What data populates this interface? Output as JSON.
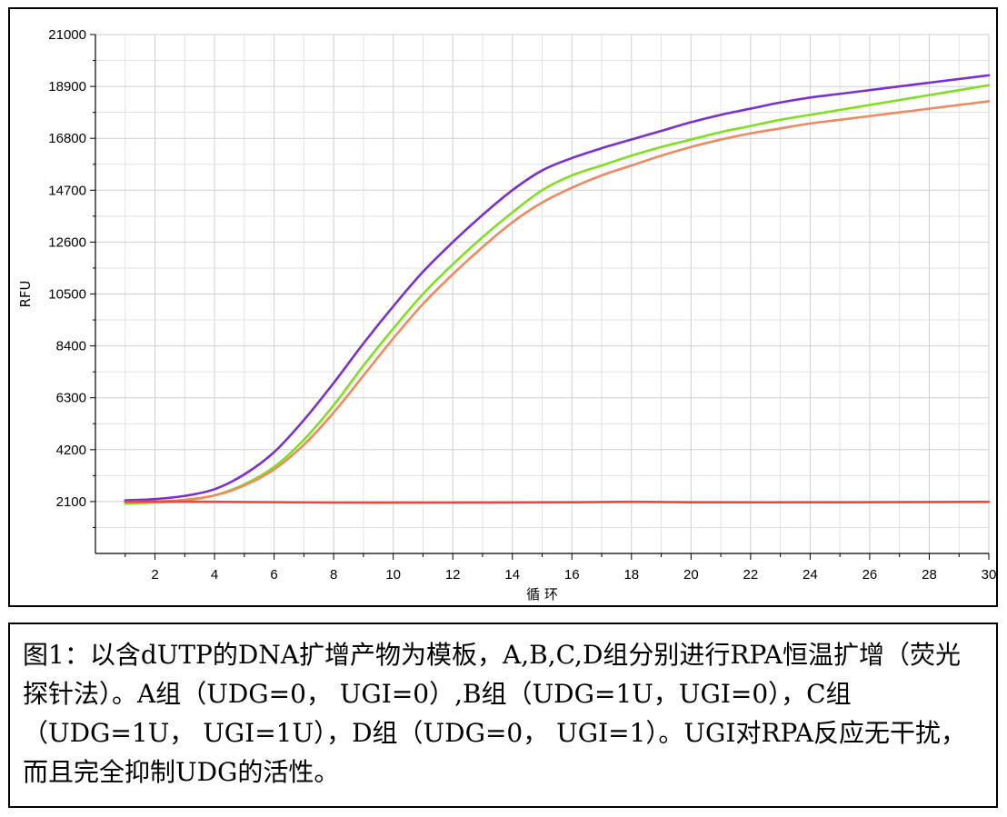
{
  "chart_data": {
    "type": "line",
    "xlabel": "循 环",
    "ylabel": "RFU",
    "xlim": [
      0,
      30
    ],
    "ylim": [
      0,
      21000
    ],
    "x_ticks": [
      2,
      4,
      6,
      8,
      10,
      12,
      14,
      16,
      18,
      20,
      22,
      24,
      26,
      28,
      30
    ],
    "y_ticks": [
      2100,
      4200,
      6300,
      8400,
      10500,
      12600,
      14700,
      16800,
      18900,
      21000
    ],
    "grid": true,
    "series": [
      {
        "color": "#7b2fd0",
        "x": [
          1,
          2,
          3,
          4,
          5,
          6,
          7,
          8,
          9,
          10,
          11,
          12,
          13,
          14,
          15,
          16,
          17,
          18,
          19,
          20,
          21,
          22,
          23,
          24,
          25,
          26,
          27,
          28,
          29,
          30
        ],
        "y": [
          2150,
          2200,
          2330,
          2600,
          3200,
          4100,
          5400,
          6900,
          8500,
          10000,
          11400,
          12600,
          13700,
          14700,
          15500,
          16000,
          16400,
          16750,
          17100,
          17450,
          17750,
          18000,
          18250,
          18450,
          18600,
          18750,
          18900,
          19050,
          19200,
          19350
        ]
      },
      {
        "color": "#80e020",
        "x": [
          1,
          2,
          3,
          4,
          5,
          6,
          7,
          8,
          9,
          10,
          11,
          12,
          13,
          14,
          15,
          16,
          17,
          18,
          19,
          20,
          21,
          22,
          23,
          24,
          25,
          26,
          27,
          28,
          29,
          30
        ],
        "y": [
          2020,
          2060,
          2150,
          2350,
          2800,
          3500,
          4600,
          6000,
          7600,
          9100,
          10500,
          11700,
          12800,
          13800,
          14700,
          15300,
          15700,
          16100,
          16450,
          16750,
          17050,
          17300,
          17550,
          17750,
          17950,
          18150,
          18350,
          18550,
          18750,
          18950
        ]
      },
      {
        "color": "#f08860",
        "x": [
          1,
          2,
          3,
          4,
          5,
          6,
          7,
          8,
          9,
          10,
          11,
          12,
          13,
          14,
          15,
          16,
          17,
          18,
          19,
          20,
          21,
          22,
          23,
          24,
          25,
          26,
          27,
          28,
          29,
          30
        ],
        "y": [
          2080,
          2100,
          2170,
          2350,
          2750,
          3400,
          4400,
          5700,
          7200,
          8700,
          10100,
          11300,
          12400,
          13400,
          14200,
          14800,
          15300,
          15700,
          16100,
          16450,
          16750,
          17000,
          17200,
          17400,
          17550,
          17700,
          17850,
          18000,
          18150,
          18300
        ]
      },
      {
        "color": "#e8483e",
        "x": [
          1,
          4,
          8,
          12,
          16,
          18,
          20,
          24,
          28,
          30
        ],
        "y": [
          2100,
          2090,
          2060,
          2060,
          2070,
          2090,
          2070,
          2070,
          2080,
          2090
        ]
      }
    ]
  },
  "caption": {
    "text": "图1：以含dUTP的DNA扩增产物为模板，A,B,C,D组分别进行RPA恒温扩增（荧光探针法）。A组（UDG=0， UGI=0）,B组（UDG=1U，UGI=0），C组（UDG=1U， UGI=1U），D组（UDG=0， UGI=1）。UGI对RPA反应无干扰，而且完全抑制UDG的活性。"
  }
}
